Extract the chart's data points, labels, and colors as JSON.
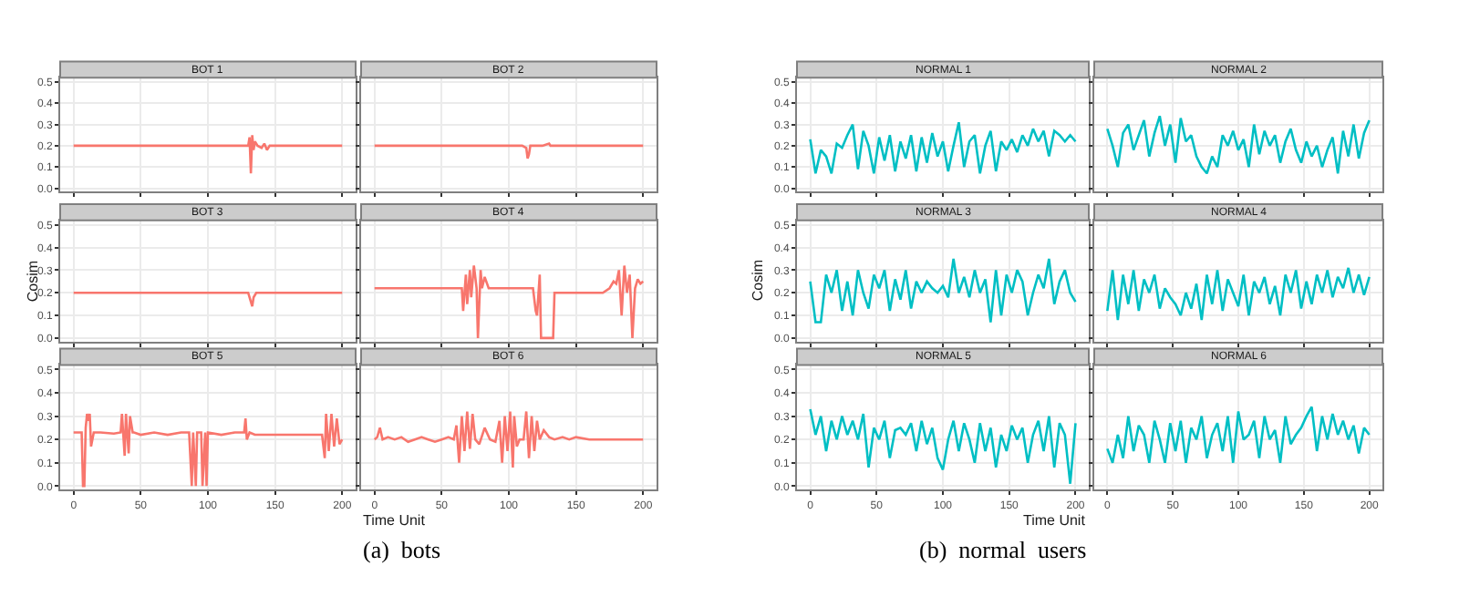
{
  "chart_data": [
    {
      "type": "line",
      "title": "BOT 1",
      "xlim": [
        -10,
        210
      ],
      "ylim": [
        -0.015,
        0.52
      ],
      "yticks": [
        {
          "value": 0,
          "label": "0.0"
        },
        0.1,
        0.2,
        0.3,
        0.4,
        0.5
      ],
      "xticks": [
        {
          "value": 0,
          "label": null
        },
        {
          "value": 50,
          "label": null
        },
        {
          "value": 100,
          "label": null
        },
        {
          "value": 150,
          "label": null
        },
        {
          "value": 200,
          "label": null
        }
      ],
      "grid": true,
      "tick_labels": "y",
      "series": [
        {
          "color": "#f8766d",
          "x": [
            0,
            10,
            20,
            30,
            40,
            50,
            60,
            70,
            80,
            90,
            100,
            110,
            120,
            128,
            130,
            131,
            132,
            133,
            134,
            135,
            137,
            140,
            142,
            144,
            146,
            150,
            160,
            170,
            180,
            190,
            200
          ],
          "values": [
            0.2,
            0.2,
            0.2,
            0.2,
            0.2,
            0.2,
            0.2,
            0.2,
            0.2,
            0.2,
            0.2,
            0.2,
            0.2,
            0.2,
            0.2,
            0.24,
            0.07,
            0.25,
            0.18,
            0.22,
            0.2,
            0.19,
            0.21,
            0.18,
            0.2,
            0.2,
            0.2,
            0.2,
            0.2,
            0.2,
            0.2
          ]
        }
      ]
    },
    {
      "type": "line",
      "title": "BOT 2",
      "xlim": [
        -10,
        210
      ],
      "ylim": [
        -0.015,
        0.52
      ],
      "yticks": [
        {
          "value": 0,
          "label": null
        },
        {
          "value": 0.1,
          "label": null
        },
        {
          "value": 0.2,
          "label": null
        },
        {
          "value": 0.3,
          "label": null
        },
        {
          "value": 0.4,
          "label": null
        },
        {
          "value": 0.5,
          "label": null
        }
      ],
      "xticks": [
        {
          "value": 0,
          "label": null
        },
        {
          "value": 50,
          "label": null
        },
        {
          "value": 100,
          "label": null
        },
        {
          "value": 150,
          "label": null
        },
        {
          "value": 200,
          "label": null
        }
      ],
      "grid": true,
      "tick_labels": false,
      "series": [
        {
          "color": "#f8766d",
          "x": [
            0,
            10,
            20,
            30,
            40,
            50,
            60,
            70,
            80,
            90,
            100,
            110,
            113,
            114,
            115,
            116,
            118,
            125,
            130,
            131,
            135,
            140,
            150,
            160,
            170,
            180,
            190,
            200
          ],
          "values": [
            0.2,
            0.2,
            0.2,
            0.2,
            0.2,
            0.2,
            0.2,
            0.2,
            0.2,
            0.2,
            0.2,
            0.2,
            0.19,
            0.14,
            0.16,
            0.2,
            0.2,
            0.2,
            0.21,
            0.2,
            0.2,
            0.2,
            0.2,
            0.2,
            0.2,
            0.2,
            0.2,
            0.2
          ]
        }
      ]
    },
    {
      "type": "line",
      "title": "BOT 3",
      "ylabel": "Cosim",
      "xlim": [
        -10,
        210
      ],
      "ylim": [
        -0.015,
        0.52
      ],
      "yticks": [
        {
          "value": 0,
          "label": "0.0"
        },
        0.1,
        0.2,
        0.3,
        0.4,
        0.5
      ],
      "xticks": [
        {
          "value": 0,
          "label": null
        },
        {
          "value": 50,
          "label": null
        },
        {
          "value": 100,
          "label": null
        },
        {
          "value": 150,
          "label": null
        },
        {
          "value": 200,
          "label": null
        }
      ],
      "grid": true,
      "tick_labels": "y",
      "series": [
        {
          "color": "#f8766d",
          "x": [
            0,
            10,
            20,
            30,
            40,
            50,
            60,
            70,
            80,
            90,
            100,
            110,
            120,
            130,
            132,
            133,
            134,
            136,
            140,
            150,
            160,
            170,
            180,
            190,
            200
          ],
          "values": [
            0.2,
            0.2,
            0.2,
            0.2,
            0.2,
            0.2,
            0.2,
            0.2,
            0.2,
            0.2,
            0.2,
            0.2,
            0.2,
            0.2,
            0.16,
            0.14,
            0.18,
            0.2,
            0.2,
            0.2,
            0.2,
            0.2,
            0.2,
            0.2,
            0.2
          ]
        }
      ]
    },
    {
      "type": "line",
      "title": "BOT 4",
      "xlim": [
        -10,
        210
      ],
      "ylim": [
        -0.015,
        0.52
      ],
      "yticks": [
        {
          "value": 0,
          "label": null
        },
        {
          "value": 0.1,
          "label": null
        },
        {
          "value": 0.2,
          "label": null
        },
        {
          "value": 0.3,
          "label": null
        },
        {
          "value": 0.4,
          "label": null
        },
        {
          "value": 0.5,
          "label": null
        }
      ],
      "xticks": [
        {
          "value": 0,
          "label": null
        },
        {
          "value": 50,
          "label": null
        },
        {
          "value": 100,
          "label": null
        },
        {
          "value": 150,
          "label": null
        },
        {
          "value": 200,
          "label": null
        }
      ],
      "grid": true,
      "tick_labels": false,
      "series": [
        {
          "color": "#f8766d",
          "x": [
            0,
            20,
            40,
            60,
            65,
            66,
            68,
            69,
            71,
            72,
            74,
            76,
            77,
            79,
            80,
            82,
            85,
            90,
            100,
            110,
            118,
            120,
            121,
            123,
            124,
            126,
            128,
            133,
            134,
            135,
            140,
            150,
            160,
            170,
            175,
            178,
            180,
            182,
            184,
            186,
            188,
            190,
            192,
            194,
            196,
            198,
            200
          ],
          "values": [
            0.22,
            0.22,
            0.22,
            0.22,
            0.22,
            0.12,
            0.28,
            0.15,
            0.3,
            0.18,
            0.32,
            0.22,
            0.0,
            0.3,
            0.22,
            0.27,
            0.22,
            0.22,
            0.22,
            0.22,
            0.22,
            0.12,
            0.1,
            0.28,
            0.0,
            0.0,
            0.0,
            0.0,
            0.2,
            0.2,
            0.2,
            0.2,
            0.2,
            0.2,
            0.22,
            0.25,
            0.24,
            0.3,
            0.1,
            0.32,
            0.2,
            0.28,
            0.0,
            0.22,
            0.26,
            0.24,
            0.25
          ]
        }
      ]
    },
    {
      "type": "line",
      "title": "BOT 5",
      "xlabel": "Time Unit",
      "annotations": [
        "(a)  bots"
      ],
      "xlim": [
        -10,
        210
      ],
      "ylim": [
        -0.015,
        0.52
      ],
      "yticks": [
        {
          "value": 0,
          "label": "0.0"
        },
        0.1,
        0.2,
        0.3,
        0.4,
        0.5
      ],
      "xticks": [
        0,
        50,
        100,
        150,
        200
      ],
      "grid": true,
      "series": [
        {
          "color": "#f8766d",
          "x": [
            0,
            6,
            7,
            8,
            9,
            10,
            11,
            12,
            13,
            15,
            16,
            18,
            20,
            30,
            35,
            36,
            38,
            39,
            41,
            42,
            44,
            45,
            50,
            60,
            70,
            80,
            86,
            88,
            89,
            91,
            92,
            95,
            96,
            98,
            99,
            100,
            110,
            120,
            127,
            128,
            129,
            131,
            135,
            150,
            170,
            185,
            187,
            188,
            190,
            192,
            194,
            196,
            198,
            200
          ],
          "values": [
            0.23,
            0.23,
            0.0,
            0.0,
            0.25,
            0.31,
            0.28,
            0.31,
            0.17,
            0.23,
            0.23,
            0.23,
            0.23,
            0.225,
            0.23,
            0.31,
            0.13,
            0.31,
            0.14,
            0.3,
            0.23,
            0.23,
            0.22,
            0.23,
            0.22,
            0.23,
            0.23,
            0.0,
            0.23,
            0.0,
            0.23,
            0.23,
            0.0,
            0.23,
            0.0,
            0.23,
            0.22,
            0.23,
            0.23,
            0.29,
            0.2,
            0.23,
            0.22,
            0.22,
            0.22,
            0.22,
            0.12,
            0.31,
            0.15,
            0.31,
            0.17,
            0.29,
            0.18,
            0.2
          ]
        }
      ]
    },
    {
      "type": "line",
      "title": "BOT 6",
      "xlim": [
        -10,
        210
      ],
      "ylim": [
        -0.015,
        0.52
      ],
      "yticks": [
        {
          "value": 0,
          "label": null
        },
        {
          "value": 0.1,
          "label": null
        },
        {
          "value": 0.2,
          "label": null
        },
        {
          "value": 0.3,
          "label": null
        },
        {
          "value": 0.4,
          "label": null
        },
        {
          "value": 0.5,
          "label": null
        }
      ],
      "xticks": [
        0,
        50,
        100,
        150,
        200
      ],
      "grid": true,
      "tick_labels": "x",
      "series": [
        {
          "color": "#f8766d",
          "x": [
            0,
            2,
            4,
            6,
            10,
            15,
            20,
            25,
            30,
            35,
            40,
            45,
            50,
            55,
            59,
            61,
            63,
            65,
            67,
            69,
            71,
            73,
            75,
            78,
            82,
            86,
            90,
            93,
            95,
            97,
            99,
            101,
            103,
            104,
            106,
            108,
            111,
            113,
            115,
            117,
            119,
            121,
            123,
            126,
            130,
            134,
            140,
            145,
            150,
            160,
            170,
            180,
            190,
            200
          ],
          "values": [
            0.2,
            0.21,
            0.25,
            0.2,
            0.21,
            0.2,
            0.21,
            0.19,
            0.2,
            0.21,
            0.2,
            0.19,
            0.2,
            0.21,
            0.2,
            0.26,
            0.1,
            0.3,
            0.15,
            0.32,
            0.16,
            0.31,
            0.2,
            0.18,
            0.25,
            0.2,
            0.19,
            0.28,
            0.1,
            0.3,
            0.15,
            0.32,
            0.08,
            0.3,
            0.17,
            0.2,
            0.2,
            0.32,
            0.12,
            0.3,
            0.15,
            0.28,
            0.2,
            0.24,
            0.21,
            0.2,
            0.21,
            0.2,
            0.21,
            0.2,
            0.2,
            0.2,
            0.2,
            0.2
          ]
        }
      ]
    },
    {
      "type": "line",
      "title": "NORMAL 1",
      "xlim": [
        -10,
        210
      ],
      "ylim": [
        -0.015,
        0.52
      ],
      "yticks": [
        {
          "value": 0,
          "label": "0.0"
        },
        0.1,
        0.2,
        0.3,
        0.4,
        0.5
      ],
      "xticks": [
        {
          "value": 0,
          "label": null
        },
        {
          "value": 50,
          "label": null
        },
        {
          "value": 100,
          "label": null
        },
        {
          "value": 150,
          "label": null
        },
        {
          "value": 200,
          "label": null
        }
      ],
      "grid": true,
      "tick_labels": "y",
      "x": [
        0,
        4,
        8,
        12,
        16,
        20,
        24,
        28,
        32,
        36,
        40,
        44,
        48,
        52,
        56,
        60,
        64,
        68,
        72,
        76,
        80,
        84,
        88,
        92,
        96,
        100,
        104,
        108,
        112,
        116,
        120,
        124,
        128,
        132,
        136,
        140,
        144,
        148,
        152,
        156,
        160,
        164,
        168,
        172,
        176,
        180,
        184,
        188,
        192,
        196,
        200
      ],
      "series": [
        {
          "color": "#00bfc4",
          "values": [
            0.23,
            0.07,
            0.18,
            0.15,
            0.07,
            0.21,
            0.19,
            0.25,
            0.3,
            0.09,
            0.27,
            0.2,
            0.07,
            0.24,
            0.13,
            0.25,
            0.08,
            0.22,
            0.14,
            0.25,
            0.08,
            0.24,
            0.12,
            0.26,
            0.15,
            0.22,
            0.08,
            0.2,
            0.31,
            0.1,
            0.22,
            0.25,
            0.07,
            0.2,
            0.27,
            0.08,
            0.22,
            0.18,
            0.23,
            0.17,
            0.25,
            0.2,
            0.28,
            0.22,
            0.27,
            0.15,
            0.27,
            0.25,
            0.22,
            0.25,
            0.22
          ]
        }
      ]
    },
    {
      "type": "line",
      "title": "NORMAL 2",
      "xlim": [
        -10,
        210
      ],
      "ylim": [
        -0.015,
        0.52
      ],
      "yticks": [
        {
          "value": 0,
          "label": null
        },
        {
          "value": 0.1,
          "label": null
        },
        {
          "value": 0.2,
          "label": null
        },
        {
          "value": 0.3,
          "label": null
        },
        {
          "value": 0.4,
          "label": null
        },
        {
          "value": 0.5,
          "label": null
        }
      ],
      "xticks": [
        {
          "value": 0,
          "label": null
        },
        {
          "value": 50,
          "label": null
        },
        {
          "value": 100,
          "label": null
        },
        {
          "value": 150,
          "label": null
        },
        {
          "value": 200,
          "label": null
        }
      ],
      "grid": true,
      "tick_labels": false,
      "x": [
        0,
        4,
        8,
        12,
        16,
        20,
        24,
        28,
        32,
        36,
        40,
        44,
        48,
        52,
        56,
        60,
        64,
        68,
        72,
        76,
        80,
        84,
        88,
        92,
        96,
        100,
        104,
        108,
        112,
        116,
        120,
        124,
        128,
        132,
        136,
        140,
        144,
        148,
        152,
        156,
        160,
        164,
        168,
        172,
        176,
        180,
        184,
        188,
        192,
        196,
        200
      ],
      "series": [
        {
          "color": "#00bfc4",
          "values": [
            0.28,
            0.2,
            0.1,
            0.26,
            0.3,
            0.18,
            0.25,
            0.32,
            0.15,
            0.26,
            0.34,
            0.2,
            0.3,
            0.12,
            0.33,
            0.22,
            0.25,
            0.15,
            0.1,
            0.07,
            0.15,
            0.1,
            0.25,
            0.2,
            0.27,
            0.18,
            0.23,
            0.1,
            0.3,
            0.16,
            0.27,
            0.2,
            0.25,
            0.12,
            0.22,
            0.28,
            0.18,
            0.12,
            0.22,
            0.15,
            0.2,
            0.1,
            0.18,
            0.24,
            0.07,
            0.27,
            0.15,
            0.3,
            0.14,
            0.26,
            0.32
          ]
        }
      ]
    },
    {
      "type": "line",
      "title": "NORMAL 3",
      "ylabel": "Cosim",
      "xlim": [
        -10,
        210
      ],
      "ylim": [
        -0.015,
        0.52
      ],
      "yticks": [
        {
          "value": 0,
          "label": "0.0"
        },
        0.1,
        0.2,
        0.3,
        0.4,
        0.5
      ],
      "xticks": [
        {
          "value": 0,
          "label": null
        },
        {
          "value": 50,
          "label": null
        },
        {
          "value": 100,
          "label": null
        },
        {
          "value": 150,
          "label": null
        },
        {
          "value": 200,
          "label": null
        }
      ],
      "grid": true,
      "tick_labels": "y",
      "x": [
        0,
        4,
        8,
        12,
        16,
        20,
        24,
        28,
        32,
        36,
        40,
        44,
        48,
        52,
        56,
        60,
        64,
        68,
        72,
        76,
        80,
        84,
        88,
        92,
        96,
        100,
        104,
        108,
        112,
        116,
        120,
        124,
        128,
        132,
        136,
        140,
        144,
        148,
        152,
        156,
        160,
        164,
        168,
        172,
        176,
        180,
        184,
        188,
        192,
        196,
        200
      ],
      "series": [
        {
          "color": "#00bfc4",
          "values": [
            0.25,
            0.07,
            0.07,
            0.28,
            0.2,
            0.3,
            0.12,
            0.25,
            0.1,
            0.3,
            0.2,
            0.13,
            0.28,
            0.22,
            0.3,
            0.12,
            0.26,
            0.17,
            0.3,
            0.13,
            0.25,
            0.2,
            0.25,
            0.22,
            0.2,
            0.23,
            0.18,
            0.35,
            0.2,
            0.27,
            0.18,
            0.3,
            0.2,
            0.26,
            0.07,
            0.3,
            0.1,
            0.28,
            0.2,
            0.3,
            0.25,
            0.1,
            0.2,
            0.28,
            0.22,
            0.35,
            0.15,
            0.25,
            0.3,
            0.2,
            0.16
          ]
        }
      ]
    },
    {
      "type": "line",
      "title": "NORMAL 4",
      "xlim": [
        -10,
        210
      ],
      "ylim": [
        -0.015,
        0.52
      ],
      "yticks": [
        {
          "value": 0,
          "label": null
        },
        {
          "value": 0.1,
          "label": null
        },
        {
          "value": 0.2,
          "label": null
        },
        {
          "value": 0.3,
          "label": null
        },
        {
          "value": 0.4,
          "label": null
        },
        {
          "value": 0.5,
          "label": null
        }
      ],
      "xticks": [
        {
          "value": 0,
          "label": null
        },
        {
          "value": 50,
          "label": null
        },
        {
          "value": 100,
          "label": null
        },
        {
          "value": 150,
          "label": null
        },
        {
          "value": 200,
          "label": null
        }
      ],
      "grid": true,
      "tick_labels": false,
      "x": [
        0,
        4,
        8,
        12,
        16,
        20,
        24,
        28,
        32,
        36,
        40,
        44,
        48,
        52,
        56,
        60,
        64,
        68,
        72,
        76,
        80,
        84,
        88,
        92,
        96,
        100,
        104,
        108,
        112,
        116,
        120,
        124,
        128,
        132,
        136,
        140,
        144,
        148,
        152,
        156,
        160,
        164,
        168,
        172,
        176,
        180,
        184,
        188,
        192,
        196,
        200
      ],
      "series": [
        {
          "color": "#00bfc4",
          "values": [
            0.12,
            0.3,
            0.08,
            0.28,
            0.15,
            0.3,
            0.12,
            0.26,
            0.2,
            0.28,
            0.13,
            0.22,
            0.18,
            0.15,
            0.1,
            0.2,
            0.13,
            0.24,
            0.08,
            0.28,
            0.15,
            0.3,
            0.12,
            0.26,
            0.2,
            0.14,
            0.28,
            0.1,
            0.25,
            0.2,
            0.27,
            0.15,
            0.23,
            0.1,
            0.28,
            0.2,
            0.3,
            0.13,
            0.25,
            0.15,
            0.28,
            0.2,
            0.3,
            0.18,
            0.27,
            0.22,
            0.31,
            0.2,
            0.28,
            0.19,
            0.27
          ]
        }
      ]
    },
    {
      "type": "line",
      "title": "NORMAL 5",
      "xlabel": "Time Unit",
      "annotations": [
        "(b)  normal  users"
      ],
      "xlim": [
        -10,
        210
      ],
      "ylim": [
        -0.015,
        0.52
      ],
      "yticks": [
        {
          "value": 0,
          "label": "0.0"
        },
        0.1,
        0.2,
        0.3,
        0.4,
        0.5
      ],
      "xticks": [
        0,
        50,
        100,
        150,
        200
      ],
      "grid": true,
      "x": [
        0,
        4,
        8,
        12,
        16,
        20,
        24,
        28,
        32,
        36,
        40,
        44,
        48,
        52,
        56,
        60,
        64,
        68,
        72,
        76,
        80,
        84,
        88,
        92,
        96,
        100,
        104,
        108,
        112,
        116,
        120,
        124,
        128,
        132,
        136,
        140,
        144,
        148,
        152,
        156,
        160,
        164,
        168,
        172,
        176,
        180,
        184,
        188,
        192,
        196,
        200
      ],
      "series": [
        {
          "color": "#00bfc4",
          "values": [
            0.33,
            0.22,
            0.3,
            0.15,
            0.28,
            0.2,
            0.3,
            0.22,
            0.28,
            0.2,
            0.31,
            0.08,
            0.25,
            0.2,
            0.28,
            0.12,
            0.24,
            0.25,
            0.22,
            0.27,
            0.15,
            0.28,
            0.18,
            0.25,
            0.12,
            0.07,
            0.2,
            0.28,
            0.15,
            0.27,
            0.2,
            0.1,
            0.27,
            0.15,
            0.25,
            0.08,
            0.22,
            0.15,
            0.26,
            0.2,
            0.25,
            0.1,
            0.22,
            0.28,
            0.15,
            0.3,
            0.08,
            0.27,
            0.22,
            0.01,
            0.27
          ]
        }
      ]
    },
    {
      "type": "line",
      "title": "NORMAL 6",
      "xlim": [
        -10,
        210
      ],
      "ylim": [
        -0.015,
        0.52
      ],
      "yticks": [
        {
          "value": 0,
          "label": null
        },
        {
          "value": 0.1,
          "label": null
        },
        {
          "value": 0.2,
          "label": null
        },
        {
          "value": 0.3,
          "label": null
        },
        {
          "value": 0.4,
          "label": null
        },
        {
          "value": 0.5,
          "label": null
        }
      ],
      "xticks": [
        0,
        50,
        100,
        150,
        200
      ],
      "grid": true,
      "tick_labels": "x",
      "x": [
        0,
        4,
        8,
        12,
        16,
        20,
        24,
        28,
        32,
        36,
        40,
        44,
        48,
        52,
        56,
        60,
        64,
        68,
        72,
        76,
        80,
        84,
        88,
        92,
        96,
        100,
        104,
        108,
        112,
        116,
        120,
        124,
        128,
        132,
        136,
        140,
        144,
        148,
        152,
        156,
        160,
        164,
        168,
        172,
        176,
        180,
        184,
        188,
        192,
        196,
        200
      ],
      "series": [
        {
          "color": "#00bfc4",
          "values": [
            0.16,
            0.1,
            0.22,
            0.12,
            0.3,
            0.15,
            0.26,
            0.22,
            0.1,
            0.28,
            0.2,
            0.1,
            0.27,
            0.15,
            0.28,
            0.1,
            0.25,
            0.2,
            0.3,
            0.12,
            0.22,
            0.27,
            0.15,
            0.3,
            0.1,
            0.32,
            0.2,
            0.22,
            0.28,
            0.12,
            0.3,
            0.2,
            0.24,
            0.1,
            0.3,
            0.18,
            0.22,
            0.25,
            0.3,
            0.34,
            0.15,
            0.3,
            0.2,
            0.31,
            0.22,
            0.28,
            0.2,
            0.26,
            0.14,
            0.25,
            0.22
          ]
        }
      ]
    }
  ]
}
